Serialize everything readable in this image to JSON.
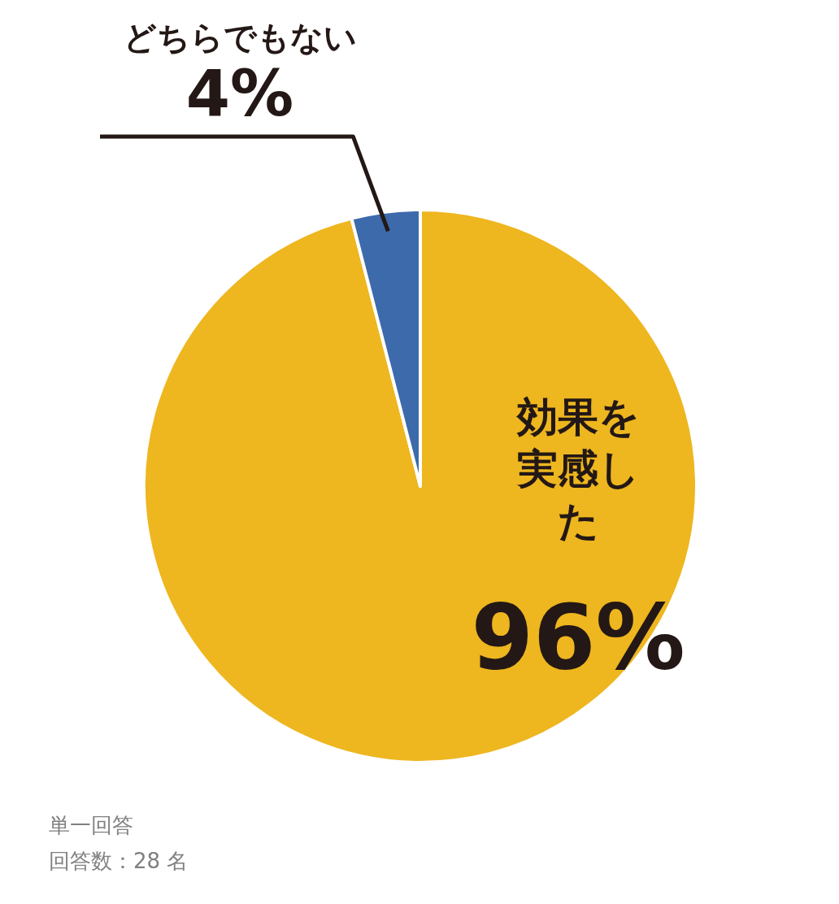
{
  "chart_data": {
    "type": "pie",
    "categories": [
      "効果を実感した",
      "どちらでもない"
    ],
    "values": [
      96,
      4
    ],
    "colors": [
      "#eeb61f",
      "#3d6aab"
    ],
    "value_labels": [
      "96%",
      "4%"
    ],
    "legend": false,
    "annotations": [
      "単一回答",
      "回答数：28 名"
    ]
  }
}
